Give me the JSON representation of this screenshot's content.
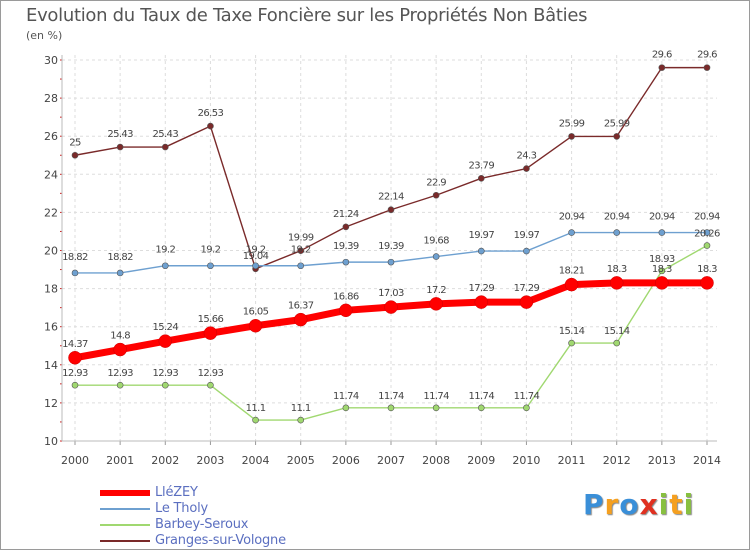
{
  "chart_data": {
    "type": "line",
    "title": "Evolution du Taux de Taxe Foncière sur les Propriétés Non Bâties",
    "subtitle": "(en %)",
    "x": [
      "2000",
      "2001",
      "2002",
      "2003",
      "2004",
      "2005",
      "2006",
      "2007",
      "2008",
      "2009",
      "2010",
      "2011",
      "2012",
      "2013",
      "2014"
    ],
    "ylim": [
      10,
      30
    ],
    "yticks": [
      "10",
      "12",
      "14",
      "16",
      "18",
      "20",
      "22",
      "24",
      "26",
      "28",
      "30"
    ],
    "grid": true,
    "legend_position": "bottom-left",
    "series": [
      {
        "name": "LléZEY",
        "color": "#ff0000",
        "values": [
          14.37,
          14.8,
          15.24,
          15.66,
          16.05,
          16.37,
          16.86,
          17.03,
          17.2,
          17.29,
          17.29,
          18.21,
          18.3,
          18.3,
          18.3
        ],
        "labels": [
          "14.37",
          "14.8",
          "15.24",
          "15.66",
          "16.05",
          "16.37",
          "16.86",
          "17.03",
          "17.2",
          "17.29",
          "17.29",
          "18.21",
          "18.3",
          "18.3",
          "18.3"
        ]
      },
      {
        "name": "Le Tholy",
        "color": "#6ea0d0",
        "values": [
          18.82,
          18.82,
          19.2,
          19.2,
          19.2,
          19.2,
          19.39,
          19.39,
          19.68,
          19.97,
          19.97,
          20.94,
          20.94,
          20.94,
          20.94
        ],
        "labels": [
          "18.82",
          "18.82",
          "19.2",
          "19.2",
          "19.2",
          "19.2",
          "19.39",
          "19.39",
          "19.68",
          "19.97",
          "19.97",
          "20.94",
          "20.94",
          "20.94",
          "20.94"
        ]
      },
      {
        "name": "Barbey-Seroux",
        "color": "#a0d870",
        "values": [
          12.93,
          12.93,
          12.93,
          12.93,
          11.1,
          11.1,
          11.74,
          11.74,
          11.74,
          11.74,
          11.74,
          15.14,
          15.14,
          18.93,
          20.26
        ],
        "labels": [
          "12.93",
          "12.93",
          "12.93",
          "12.93",
          "11.1",
          "11.1",
          "11.74",
          "11.74",
          "11.74",
          "11.74",
          "11.74",
          "15.14",
          "15.14",
          "18.93",
          "20.26"
        ]
      },
      {
        "name": "Granges-sur-Vologne",
        "color": "#7a2a2a",
        "values": [
          25,
          25.43,
          25.43,
          26.53,
          19.04,
          19.99,
          21.24,
          22.14,
          22.9,
          23.79,
          24.3,
          25.99,
          25.99,
          29.6,
          29.6
        ],
        "labels": [
          "25",
          "25.43",
          "25.43",
          "26.53",
          "19.04",
          "19.99",
          "21.24",
          "22.14",
          "22.9",
          "23.79",
          "24.3",
          "25.99",
          "25.99",
          "29.6",
          "29.6"
        ]
      }
    ]
  },
  "logo": {
    "letters": [
      "P",
      "r",
      "o",
      "x",
      "i",
      "t",
      "i"
    ]
  }
}
